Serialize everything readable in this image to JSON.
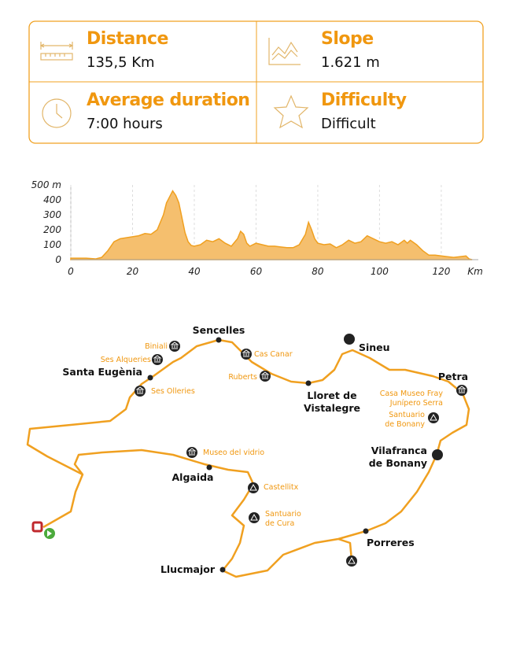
{
  "stats": [
    {
      "label": "Distance",
      "value": "135,5 Km"
    },
    {
      "label": "Slope",
      "value": "1.621 m"
    },
    {
      "label": "Average duration",
      "value": "7:00 hours"
    },
    {
      "label": "Difficulty",
      "value": "Difficult"
    }
  ],
  "chart_data": {
    "type": "area",
    "color": "#f5bf6e",
    "line_color": "#f0a020",
    "grid": true,
    "x_label": "Km",
    "x": [
      0,
      5,
      8,
      10,
      12,
      14,
      16,
      19,
      22,
      24,
      26,
      28,
      30,
      31,
      32,
      33,
      34,
      35,
      36,
      37,
      38,
      39,
      40,
      42,
      44,
      46,
      48,
      50,
      52,
      54,
      55,
      56,
      57,
      58,
      60,
      62,
      64,
      66,
      68,
      70,
      72,
      74,
      76,
      77,
      78,
      79,
      80,
      82,
      84,
      86,
      88,
      90,
      92,
      94,
      96,
      98,
      100,
      102,
      104,
      106,
      108,
      109,
      110,
      112,
      114,
      116,
      118,
      120,
      122,
      124,
      126,
      128,
      129,
      130
    ],
    "values": [
      10,
      10,
      5,
      15,
      60,
      120,
      140,
      150,
      160,
      175,
      170,
      200,
      300,
      380,
      420,
      460,
      430,
      380,
      280,
      180,
      120,
      95,
      90,
      100,
      130,
      120,
      140,
      110,
      90,
      140,
      190,
      170,
      110,
      90,
      110,
      100,
      90,
      90,
      85,
      80,
      80,
      100,
      170,
      250,
      200,
      140,
      110,
      100,
      105,
      80,
      100,
      130,
      110,
      120,
      160,
      140,
      120,
      110,
      120,
      100,
      130,
      110,
      130,
      100,
      60,
      30,
      30,
      25,
      20,
      15,
      20,
      25,
      5,
      0
    ],
    "xlim": [
      0,
      132
    ],
    "ylim": [
      0,
      500
    ],
    "xticks": [
      0,
      20,
      40,
      60,
      80,
      100,
      120
    ],
    "yticks": [
      0,
      100,
      200,
      300,
      400,
      {
        "value": 500,
        "label": "500 m"
      }
    ]
  },
  "map": {
    "places": [
      {
        "name": [
          "Sencelles"
        ]
      },
      {
        "name": [
          "Sineu"
        ]
      },
      {
        "name": [
          "Santa Eugènia"
        ]
      },
      {
        "name": [
          "Lloret de",
          "Vistalegre"
        ]
      },
      {
        "name": [
          "Petra"
        ]
      },
      {
        "name": [
          "Vilafranca",
          "de Bonany"
        ]
      },
      {
        "name": [
          "Algaida"
        ]
      },
      {
        "name": [
          "Porreres"
        ]
      },
      {
        "name": [
          "Llucmajor"
        ]
      }
    ],
    "pois": [
      {
        "name": [
          "Biniali"
        ]
      },
      {
        "name": [
          "Ses Alqueries"
        ]
      },
      {
        "name": [
          "Cas Canar"
        ]
      },
      {
        "name": [
          "Ruberts"
        ]
      },
      {
        "name": [
          "Ses Olleries"
        ]
      },
      {
        "name": [
          "Casa Museo Fray",
          "Junípero Serra"
        ]
      },
      {
        "name": [
          "Santuario",
          "de Bonany"
        ]
      },
      {
        "name": [
          "Museo del vidrio"
        ]
      },
      {
        "name": [
          "Castellitx"
        ]
      },
      {
        "name": [
          "Santuario",
          "de Cura"
        ]
      }
    ]
  }
}
